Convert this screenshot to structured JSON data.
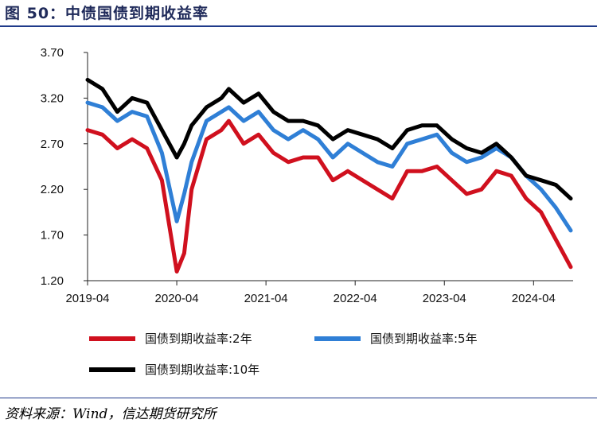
{
  "title": "图 50：中债国债到期收益率",
  "source": "资料来源：Wind，信达期货研究所",
  "chart_data": {
    "type": "line",
    "title": "中债国债到期收益率",
    "xlabel": "",
    "ylabel": "",
    "ylim": [
      1.2,
      3.7
    ],
    "yticks": [
      "3.70",
      "3.20",
      "2.70",
      "2.20",
      "1.70",
      "1.20"
    ],
    "xticks": [
      "2019-04",
      "2020-04",
      "2021-04",
      "2022-04",
      "2023-04",
      "2024-04"
    ],
    "x": [
      "2019-04",
      "2019-06",
      "2019-08",
      "2019-10",
      "2019-12",
      "2020-02",
      "2020-04",
      "2020-05",
      "2020-06",
      "2020-08",
      "2020-10",
      "2020-11",
      "2021-01",
      "2021-03",
      "2021-05",
      "2021-07",
      "2021-09",
      "2021-11",
      "2022-01",
      "2022-03",
      "2022-05",
      "2022-07",
      "2022-09",
      "2022-11",
      "2023-01",
      "2023-03",
      "2023-05",
      "2023-07",
      "2023-09",
      "2023-11",
      "2024-01",
      "2024-03",
      "2024-05",
      "2024-07",
      "2024-09"
    ],
    "series": [
      {
        "name": "国债到期收益率:2年",
        "color": "#d0101e",
        "values": [
          2.85,
          2.8,
          2.65,
          2.75,
          2.65,
          2.3,
          1.3,
          1.5,
          2.2,
          2.75,
          2.85,
          2.95,
          2.7,
          2.8,
          2.6,
          2.5,
          2.55,
          2.55,
          2.3,
          2.4,
          2.3,
          2.2,
          2.1,
          2.4,
          2.4,
          2.45,
          2.3,
          2.15,
          2.2,
          2.4,
          2.35,
          2.1,
          1.95,
          1.65,
          1.35
        ]
      },
      {
        "name": "国债到期收益率:5年",
        "color": "#2f7fd6",
        "values": [
          3.15,
          3.1,
          2.95,
          3.05,
          3.0,
          2.6,
          1.85,
          2.15,
          2.5,
          2.95,
          3.05,
          3.1,
          2.95,
          3.05,
          2.85,
          2.75,
          2.85,
          2.75,
          2.55,
          2.7,
          2.6,
          2.5,
          2.45,
          2.7,
          2.75,
          2.8,
          2.6,
          2.5,
          2.55,
          2.65,
          2.55,
          2.35,
          2.2,
          2.0,
          1.75
        ]
      },
      {
        "name": "国债到期收益率:10年",
        "color": "#000000",
        "values": [
          3.4,
          3.3,
          3.05,
          3.2,
          3.15,
          2.85,
          2.55,
          2.7,
          2.9,
          3.1,
          3.2,
          3.3,
          3.15,
          3.25,
          3.05,
          2.95,
          2.95,
          2.9,
          2.75,
          2.85,
          2.8,
          2.75,
          2.65,
          2.85,
          2.9,
          2.9,
          2.75,
          2.65,
          2.6,
          2.7,
          2.55,
          2.35,
          2.3,
          2.25,
          2.1
        ]
      }
    ],
    "legend": [
      {
        "label": "国债到期收益率:2年"
      },
      {
        "label": "国债到期收益率:5年"
      },
      {
        "label": "国债到期收益率:10年"
      }
    ],
    "legend_placement": "bottom",
    "grid": false
  }
}
